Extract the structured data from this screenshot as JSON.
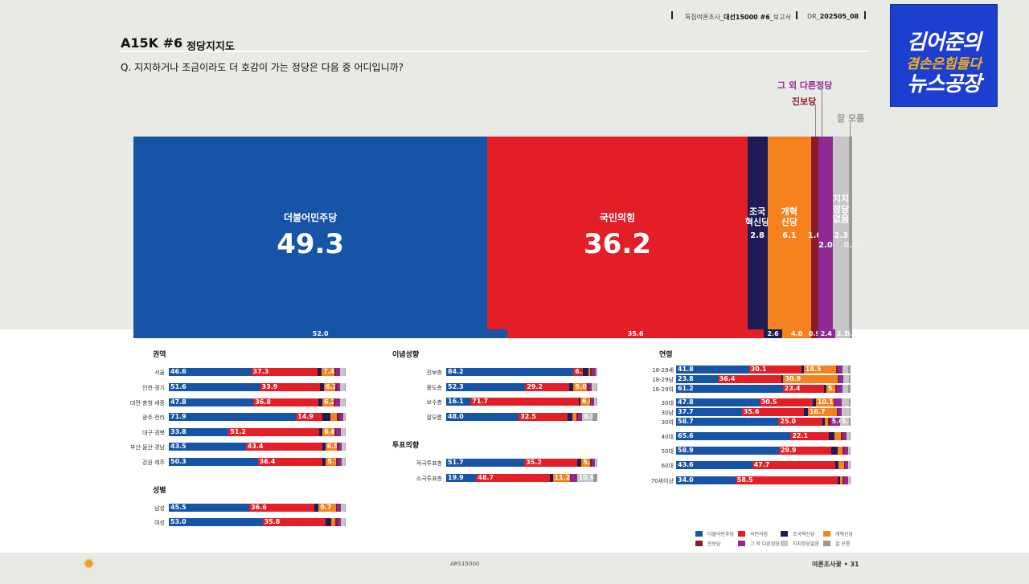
{
  "header": {
    "report_prefix": "특집여론조사_",
    "report_bold": "대선15000 #6",
    "report_suffix": "_보고서",
    "code_prefix": "DR_",
    "code_bold": "202505_08"
  },
  "title": "A15K #6",
  "subtitle": "정당지지도",
  "question": "Q. 지지하거나 조금이라도 더 호감이 가는 정당은 다음 중 어디입니까?",
  "logo": {
    "line1": "김어준의",
    "line2": "겸손은힘들다",
    "line3": "뉴스공장"
  },
  "colors": {
    "minju": "#1654a8",
    "ppp": "#e31e26",
    "cho": "#1e1c54",
    "reform": "#f5821f",
    "progressive": "#8b1a2a",
    "other": "#8e2a92",
    "none": "#c6c6c6",
    "dk": "#999999"
  },
  "chart_data": {
    "type": "bar",
    "title": "정당지지도",
    "parties": [
      "더불어민주당",
      "국민의힘",
      "조국혁신당",
      "개혁신당",
      "진보당",
      "그 외 다른정당",
      "지지정당 없음",
      "잘 모름"
    ],
    "main": {
      "values": [
        49.3,
        36.2,
        2.8,
        6.1,
        1.0,
        2.0,
        2.3,
        0.4
      ],
      "labels": [
        "더불어민주당",
        "국민의힘",
        "조국\n혁신당",
        "개혁\n신당",
        "",
        "",
        "지지\n정당\n없음",
        ""
      ],
      "value_labels": [
        "49.3",
        "36.2",
        "2.8",
        "6.1",
        "1.0",
        "2.0",
        "2.3",
        "0.4"
      ]
    },
    "previous": {
      "values": [
        52.0,
        35.6,
        2.6,
        4.0,
        0.9,
        2.4,
        2.1,
        0.3
      ],
      "value_labels": [
        "52.0",
        "35.6",
        "2.6",
        "4.0",
        "0.9",
        "2.4",
        "2.1",
        "0.3"
      ]
    },
    "callouts": [
      "그 외 다른정당",
      "진보당",
      "잘 모름"
    ],
    "groups": [
      {
        "title": "권역",
        "rows": [
          {
            "label": "서울",
            "values": [
              46.6,
              37.3,
              2.5,
              7.4,
              0.8,
              2.3,
              2.5,
              0.6
            ]
          },
          {
            "label": "인천·경기",
            "values": [
              51.6,
              33.9,
              2.2,
              6.2,
              0.9,
              2.1,
              2.5,
              0.6
            ]
          },
          {
            "label": "대전·충청·세종",
            "values": [
              47.8,
              36.8,
              2.2,
              6.2,
              1.0,
              2.7,
              2.7,
              0.6
            ]
          },
          {
            "label": "광주·전라",
            "values": [
              71.9,
              14.9,
              4.5,
              3.8,
              1.5,
              2.0,
              1.0,
              0.4
            ]
          },
          {
            "label": "대구·경북",
            "values": [
              33.8,
              51.2,
              1.9,
              6.6,
              1.0,
              2.9,
              2.2,
              0.4
            ]
          },
          {
            "label": "부산·울산·경남",
            "values": [
              43.5,
              43.4,
              1.6,
              6.5,
              0.9,
              2.0,
              1.7,
              0.4
            ]
          },
          {
            "label": "강원·제주",
            "values": [
              50.3,
              36.4,
              2.0,
              5.7,
              1.0,
              2.3,
              2.0,
              0.3
            ]
          }
        ]
      },
      {
        "title": "성별",
        "rows": [
          {
            "label": "남성",
            "values": [
              45.5,
              36.6,
              2.6,
              9.7,
              0.8,
              1.9,
              2.4,
              0.5
            ]
          },
          {
            "label": "여성",
            "values": [
              53.0,
              35.8,
              2.9,
              2.5,
              1.1,
              2.1,
              2.2,
              0.4
            ]
          }
        ]
      },
      {
        "title": "이념성향",
        "rows": [
          {
            "label": "진보층",
            "values": [
              84.2,
              6.3,
              3.5,
              1.4,
              1.0,
              2.6,
              0.7,
              0.3
            ]
          },
          {
            "label": "중도층",
            "values": [
              52.3,
              29.2,
              2.8,
              9.0,
              0.8,
              2.3,
              3.2,
              0.4
            ]
          },
          {
            "label": "보수층",
            "values": [
              16.1,
              71.7,
              1.0,
              6.6,
              0.5,
              2.0,
              1.7,
              0.4
            ]
          },
          {
            "label": "잘모름",
            "values": [
              48.0,
              32.5,
              2.8,
              2.9,
              1.0,
              2.8,
              6.8,
              3.2
            ]
          }
        ]
      },
      {
        "title": "투표의향",
        "rows": [
          {
            "label": "적극투표층",
            "values": [
              51.7,
              35.2,
              2.7,
              5.8,
              0.8,
              2.3,
              1.2,
              0.3
            ]
          },
          {
            "label": "소극투표층",
            "values": [
              19.9,
              48.7,
              1.9,
              11.2,
              0.8,
              4.0,
              10.9,
              2.6
            ]
          }
        ]
      },
      {
        "title": "연령",
        "rows": [
          {
            "label": "18-29세",
            "values": [
              41.8,
              30.1,
              1.3,
              18.5,
              0.8,
              2.8,
              3.2,
              1.5
            ]
          },
          {
            "label": "18-29남",
            "values": [
              23.8,
              36.4,
              1.3,
              30.9,
              0.8,
              2.5,
              3.2,
              1.1
            ]
          },
          {
            "label": "18-29여",
            "values": [
              61.2,
              23.4,
              1.5,
              5.1,
              0.8,
              3.2,
              3.4,
              1.4
            ]
          },
          {
            "label": "30대",
            "values": [
              47.8,
              30.5,
              1.8,
              10.1,
              0.8,
              4.0,
              4.2,
              0.8
            ]
          },
          {
            "label": "30남",
            "values": [
              37.7,
              35.6,
              2.2,
              16.7,
              0.5,
              2.2,
              4.5,
              0.6
            ]
          },
          {
            "label": "30여",
            "values": [
              58.7,
              25.0,
              1.6,
              2.0,
              1.0,
              5.6,
              5.0,
              1.1
            ]
          },
          {
            "label": "40대",
            "values": [
              65.6,
              22.1,
              3.2,
              3.5,
              1.0,
              2.2,
              1.9,
              0.5
            ]
          },
          {
            "label": "50대",
            "values": [
              58.9,
              29.9,
              3.9,
              2.7,
              1.0,
              2.0,
              1.2,
              0.4
            ]
          },
          {
            "label": "60대",
            "values": [
              43.6,
              47.7,
              1.8,
              3.1,
              0.8,
              1.7,
              1.0,
              0.3
            ]
          },
          {
            "label": "70세이상",
            "values": [
              34.0,
              58.5,
              1.5,
              1.5,
              0.8,
              2.2,
              1.2,
              0.3
            ]
          }
        ]
      }
    ],
    "legend": [
      "더불어민주당",
      "국민의힘",
      "조국혁신당",
      "개혁신당",
      "진보당",
      "그 외 다른정당",
      "지지정당없음",
      "잘 모름"
    ]
  },
  "footer": {
    "center": "ARS15000",
    "right": "여론조사꽃 • 31"
  }
}
